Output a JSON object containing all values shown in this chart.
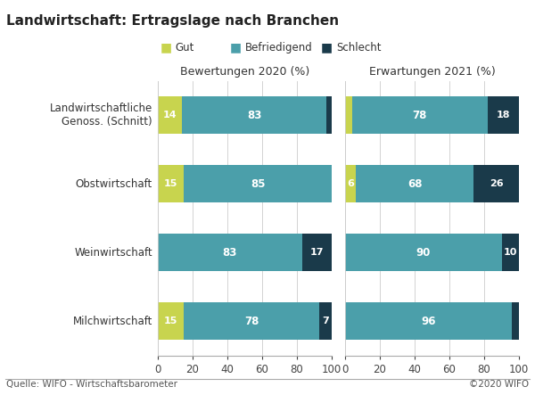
{
  "title": "Landwirtschaft: Ertragslage nach Branchen",
  "categories": [
    "Landwirtschaftliche\nGenoss. (Schnitt)",
    "Obstwirtschaft",
    "Weinwirtschaft",
    "Milchwirtschaft"
  ],
  "left_subtitle": "Bewertungen 2020 (%)",
  "right_subtitle": "Erwartungen 2021 (%)",
  "legend_labels": [
    "Gut",
    "Befriedigend",
    "Schlecht"
  ],
  "colors": {
    "gut": "#c8d44e",
    "befriedigend": "#4b9faa",
    "schlecht": "#1a3a4a"
  },
  "left_data": {
    "gut": [
      14,
      15,
      0,
      15
    ],
    "befriedigend": [
      83,
      85,
      83,
      78
    ],
    "schlecht": [
      3,
      0,
      17,
      7
    ]
  },
  "right_data": {
    "gut": [
      4,
      6,
      0,
      0
    ],
    "befriedigend": [
      78,
      68,
      90,
      96
    ],
    "schlecht": [
      18,
      26,
      10,
      4
    ]
  },
  "left_labels": {
    "gut": [
      "14",
      "15",
      "",
      "15"
    ],
    "befriedigend": [
      "83",
      "85",
      "83",
      "78"
    ],
    "schlecht": [
      "",
      "",
      "17",
      "7"
    ]
  },
  "right_labels": {
    "gut": [
      "",
      "6",
      "",
      ""
    ],
    "befriedigend": [
      "78",
      "68",
      "90",
      "96"
    ],
    "schlecht": [
      "18",
      "26",
      "10",
      ""
    ]
  },
  "footer_left": "Quelle: WIFO - Wirtschaftsbarometer",
  "footer_right": "©2020 WIFO",
  "xlim": [
    0,
    100
  ],
  "xticks": [
    0,
    20,
    40,
    60,
    80,
    100
  ],
  "background_color": "#ffffff",
  "bar_height": 0.55
}
